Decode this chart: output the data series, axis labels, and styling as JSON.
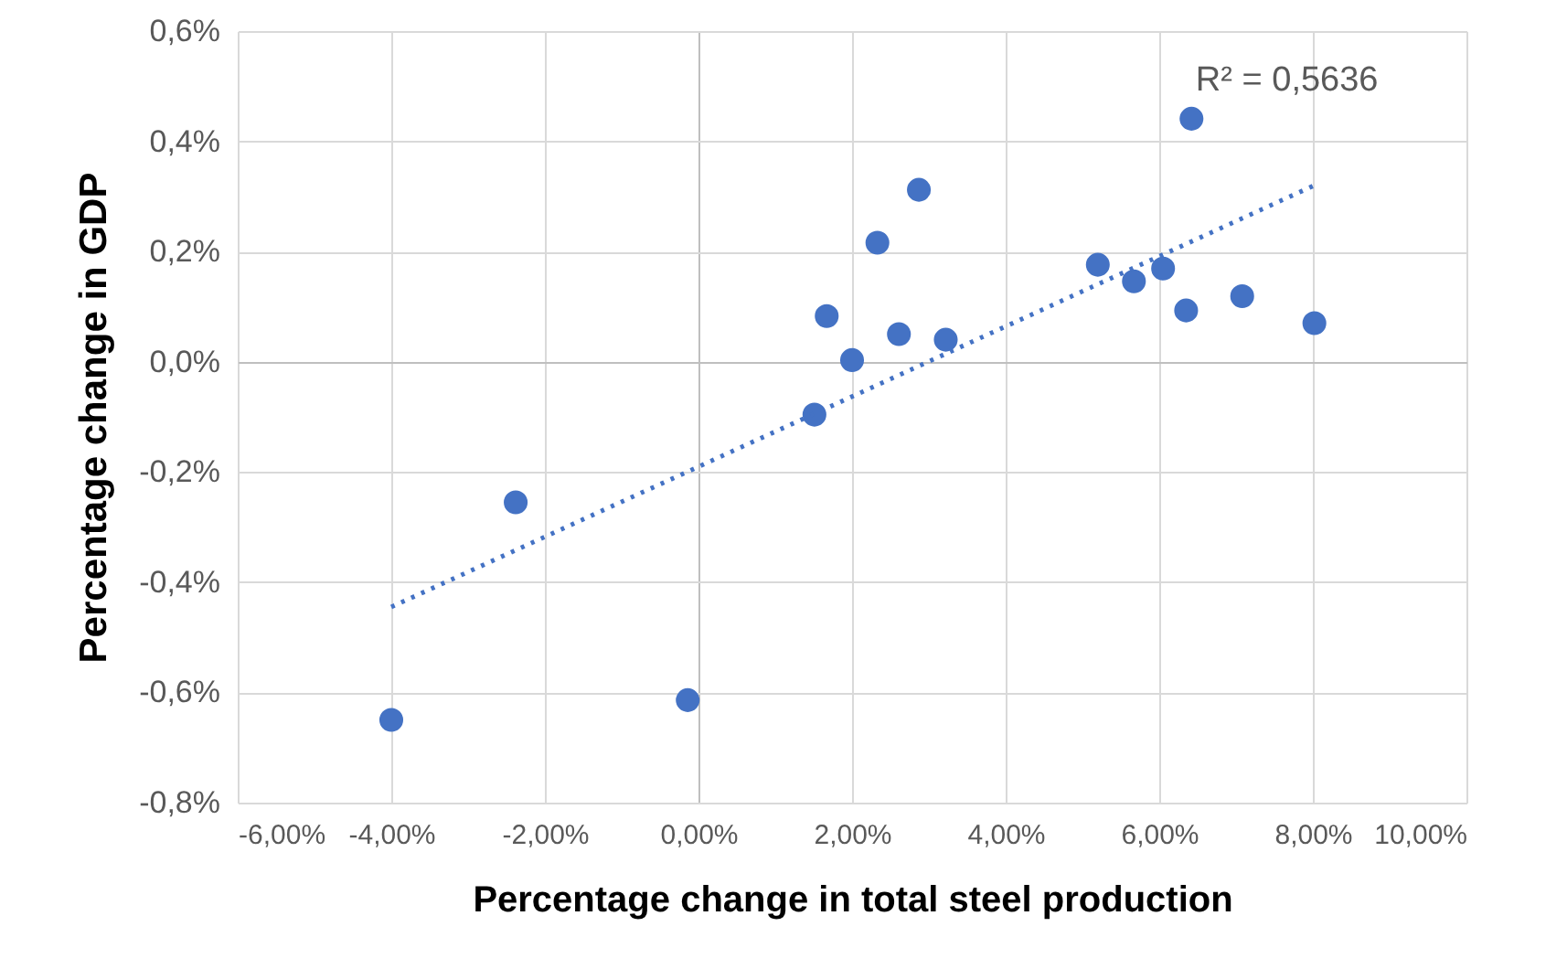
{
  "chart_data": {
    "type": "scatter",
    "xlabel": "Percentage change in total steel production",
    "ylabel": "Percentage change in GDP",
    "series": [
      {
        "color": "#4472c4",
        "marker": "circle",
        "x": [
          -4.0,
          -2.38,
          -0.14,
          1.51,
          1.67,
          2.0,
          2.33,
          2.61,
          2.87,
          3.22,
          5.2,
          5.67,
          6.05,
          6.35,
          6.42,
          7.08,
          8.02
        ],
        "values": [
          -0.65,
          -0.255,
          -0.614,
          -0.096,
          0.083,
          0.003,
          0.216,
          0.05,
          0.312,
          0.04,
          0.176,
          0.146,
          0.169,
          0.093,
          0.441,
          0.119,
          0.07
        ]
      },
      {
        "type": "line",
        "color": "#4472c4",
        "line_style": "dotted",
        "x": [
          -4.0,
          8.02
        ],
        "values": [
          -0.445,
          0.32
        ]
      }
    ],
    "annotations": [
      "R² = 0,5636"
    ],
    "xlim": [
      -6,
      10
    ],
    "xticks": [
      {
        "value": -6,
        "label": "-6,00%"
      },
      {
        "value": -4,
        "label": "-4,00%"
      },
      {
        "value": -2,
        "label": "-2,00%"
      },
      {
        "value": 0,
        "label": "0,00%"
      },
      {
        "value": 2,
        "label": "2,00%"
      },
      {
        "value": 4,
        "label": "4,00%"
      },
      {
        "value": 6,
        "label": "6,00%"
      },
      {
        "value": 8,
        "label": "8,00%"
      },
      {
        "value": 10,
        "label": "10,00%"
      }
    ],
    "ylim": [
      -0.8,
      0.6
    ],
    "yticks": [
      {
        "value": -0.8,
        "label": "-0,8%"
      },
      {
        "value": -0.6,
        "label": "-0,6%"
      },
      {
        "value": -0.4,
        "label": "-0,4%"
      },
      {
        "value": -0.2,
        "label": "-0,2%"
      },
      {
        "value": 0,
        "label": "0,0%"
      },
      {
        "value": 0.2,
        "label": "0,2%"
      },
      {
        "value": 0.4,
        "label": "0,4%"
      },
      {
        "value": 0.6,
        "label": "0,6%"
      }
    ],
    "grid": true
  }
}
